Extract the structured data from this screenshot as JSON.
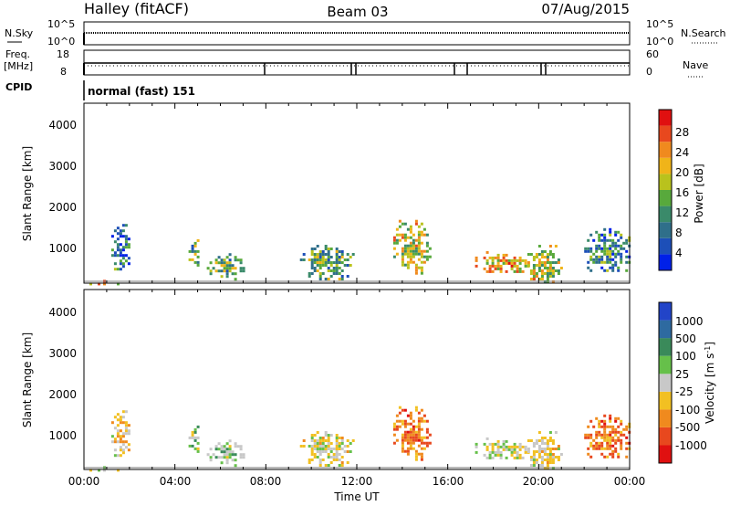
{
  "header": {
    "station": "Halley (fitACF)",
    "beam": "Beam 03",
    "date": "07/Aug/2015"
  },
  "aux": {
    "nsky_label": "N.Sky",
    "nsky_ticks": [
      "10^5",
      "10^0"
    ],
    "nsearch_label": "N.Search",
    "nsearch_ticks": [
      "10^5",
      "10^0"
    ],
    "freq_label_1": "Freq.",
    "freq_label_2": "[MHz]",
    "freq_ticks": [
      "18",
      "8"
    ],
    "nave_label": "Nave",
    "nave_ticks": [
      "60",
      "0"
    ],
    "cpid_label": "CPID",
    "cpid_value": "normal (fast) 151"
  },
  "axes": {
    "ylabel": "Slant Range [km]",
    "yticks": [
      "4000",
      "3000",
      "2000",
      "1000"
    ],
    "xlabel": "Time UT",
    "xticks": [
      "00:00",
      "04:00",
      "08:00",
      "12:00",
      "16:00",
      "20:00",
      "00:00"
    ]
  },
  "colorbars": {
    "power": {
      "label": "Power [dB]",
      "ticks": [
        "28",
        "24",
        "20",
        "16",
        "12",
        "8",
        "4"
      ],
      "colors": [
        "#0020e8",
        "#1d4fb8",
        "#2f6f8a",
        "#3a8a6a",
        "#58a93c",
        "#b9c21d",
        "#f0b419",
        "#f08a1e",
        "#e8481e",
        "#e01010"
      ]
    },
    "velocity": {
      "label": "Velocity [m s^-1]",
      "ticks": [
        "1000",
        "500",
        "100",
        "25",
        "-25",
        "-100",
        "-500",
        "-1000"
      ],
      "colors": [
        "#2244c8",
        "#2e6aa0",
        "#3a8a5a",
        "#66c04a",
        "#c8c8c8",
        "#f2c022",
        "#f08a1e",
        "#e8481e",
        "#e01010"
      ]
    }
  },
  "chart_data": [
    {
      "type": "heatmap",
      "title": "",
      "xlabel": "Time UT",
      "ylabel": "Slant Range [km]",
      "xlim": [
        0,
        24
      ],
      "ylim": [
        180,
        4500
      ],
      "colorbar_label": "Power [dB]",
      "colorbar_range": [
        0,
        32
      ],
      "clusters": [
        {
          "t": [
            0.0,
            1.6
          ],
          "r": [
            180,
            260
          ],
          "value": 20
        },
        {
          "t": [
            1.2,
            2.0
          ],
          "r": [
            500,
            1600
          ],
          "value": 10
        },
        {
          "t": [
            4.6,
            5.0
          ],
          "r": [
            600,
            1300
          ],
          "value": 14
        },
        {
          "t": [
            5.4,
            7.0
          ],
          "r": [
            300,
            900
          ],
          "value": 14
        },
        {
          "t": [
            9.5,
            11.8
          ],
          "r": [
            300,
            1100
          ],
          "value": 12
        },
        {
          "t": [
            13.6,
            15.2
          ],
          "r": [
            450,
            1700
          ],
          "value": 18
        },
        {
          "t": [
            17.2,
            19.5
          ],
          "r": [
            450,
            950
          ],
          "value": 22
        },
        {
          "t": [
            19.5,
            21.0
          ],
          "r": [
            200,
            1100
          ],
          "value": 18
        },
        {
          "t": [
            22.0,
            24.0
          ],
          "r": [
            450,
            1500
          ],
          "value": 10
        }
      ]
    },
    {
      "type": "heatmap",
      "title": "",
      "xlabel": "Time UT",
      "ylabel": "Slant Range [km]",
      "xlim": [
        0,
        24
      ],
      "ylim": [
        180,
        4500
      ],
      "colorbar_label": "Velocity [m s^-1]",
      "colorbar_range": [
        -1000,
        1000
      ],
      "clusters": [
        {
          "t": [
            0.0,
            1.6
          ],
          "r": [
            180,
            260
          ],
          "value": -100
        },
        {
          "t": [
            1.2,
            2.0
          ],
          "r": [
            500,
            1600
          ],
          "value": -100
        },
        {
          "t": [
            4.6,
            5.0
          ],
          "r": [
            600,
            1300
          ],
          "value": 100
        },
        {
          "t": [
            5.4,
            7.0
          ],
          "r": [
            300,
            900
          ],
          "value": 100
        },
        {
          "t": [
            9.5,
            11.8
          ],
          "r": [
            300,
            1100
          ],
          "value": -100
        },
        {
          "t": [
            13.6,
            15.2
          ],
          "r": [
            450,
            1700
          ],
          "value": -500
        },
        {
          "t": [
            17.2,
            19.5
          ],
          "r": [
            450,
            950
          ],
          "value": 0
        },
        {
          "t": [
            19.5,
            21.0
          ],
          "r": [
            200,
            1100
          ],
          "value": -100
        },
        {
          "t": [
            22.0,
            24.0
          ],
          "r": [
            450,
            1500
          ],
          "value": -500
        }
      ]
    }
  ]
}
